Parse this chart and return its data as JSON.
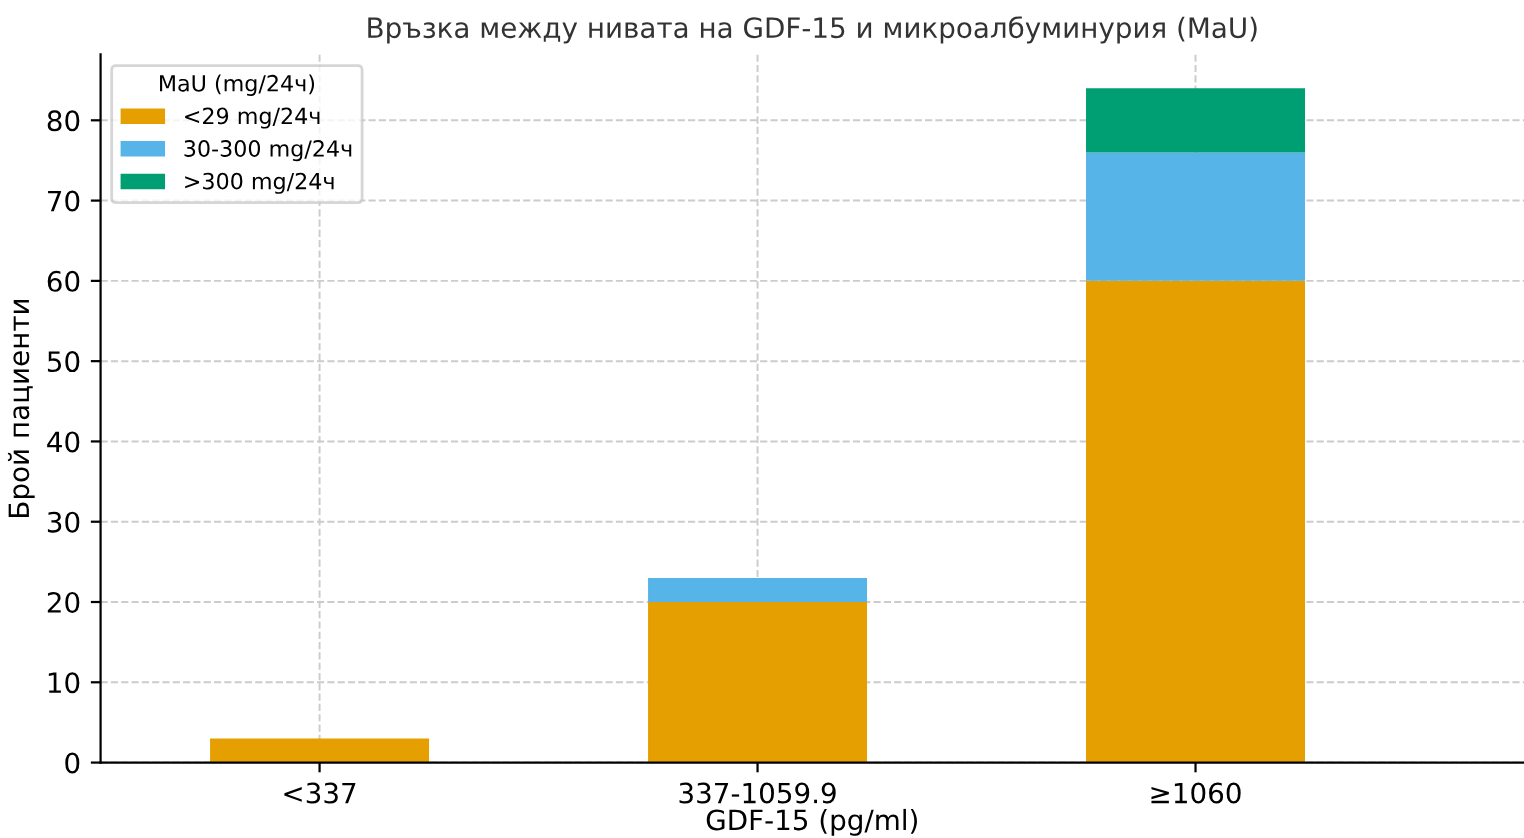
{
  "chart_data": {
    "type": "bar",
    "title": "Връзка между нивата на GDF-15 и микроалбуминурия (MaU)",
    "xlabel": "GDF-15 (pg/ml)",
    "ylabel": "Брой пациенти",
    "legend_title": "MaU (mg/24ч)",
    "categories": [
      "<337",
      "337-1059.9",
      "≥1060"
    ],
    "series": [
      {
        "name": "<29 mg/24ч",
        "color": "#e69f00",
        "values": [
          3,
          20,
          60
        ]
      },
      {
        "name": "30-300 mg/24ч",
        "color": "#56b4e9",
        "values": [
          0,
          3,
          16
        ]
      },
      {
        "name": ">300 mg/24ч",
        "color": "#009e73",
        "values": [
          0,
          0,
          8
        ]
      }
    ],
    "stacked": true,
    "ylim": [
      0,
      88.2
    ],
    "yticks": [
      0,
      10,
      20,
      30,
      40,
      50,
      60,
      70,
      80
    ],
    "grid": true,
    "legend": "top left"
  }
}
